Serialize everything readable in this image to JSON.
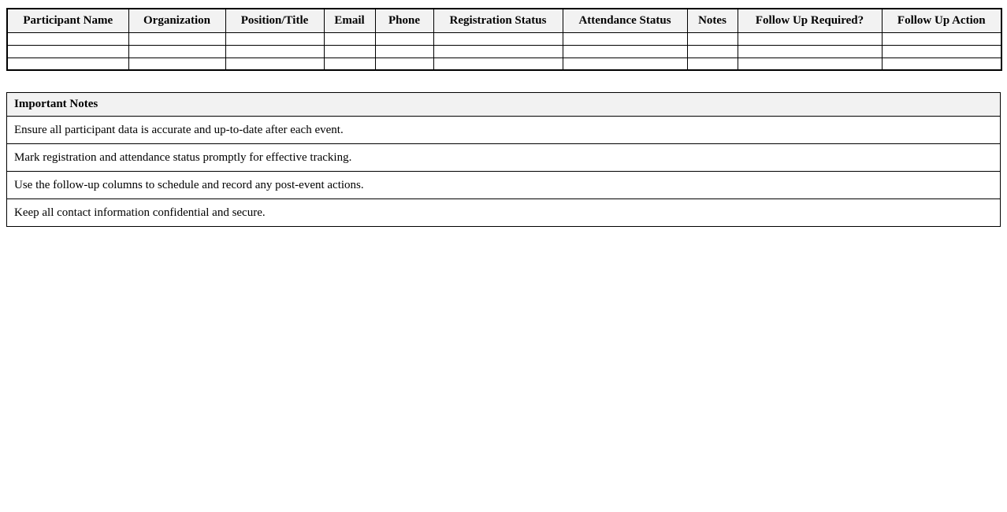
{
  "colors": {
    "header_bg": "#f2f2f2",
    "border": "#000000",
    "text": "#000000",
    "page_bg": "#ffffff"
  },
  "participants_table": {
    "columns": [
      "Participant Name",
      "Organization",
      "Position/Title",
      "Email",
      "Phone",
      "Registration Status",
      "Attendance Status",
      "Notes",
      "Follow Up Required?",
      "Follow Up Action"
    ],
    "empty_row_count": 3,
    "rows": [
      [
        "",
        "",
        "",
        "",
        "",
        "",
        "",
        "",
        "",
        ""
      ],
      [
        "",
        "",
        "",
        "",
        "",
        "",
        "",
        "",
        "",
        ""
      ],
      [
        "",
        "",
        "",
        "",
        "",
        "",
        "",
        "",
        "",
        ""
      ]
    ]
  },
  "notes_section": {
    "title": "Important Notes",
    "items": [
      "Ensure all participant data is accurate and up-to-date after each event.",
      "Mark registration and attendance status promptly for effective tracking.",
      "Use the follow-up columns to schedule and record any post-event actions.",
      "Keep all contact information confidential and secure."
    ]
  }
}
